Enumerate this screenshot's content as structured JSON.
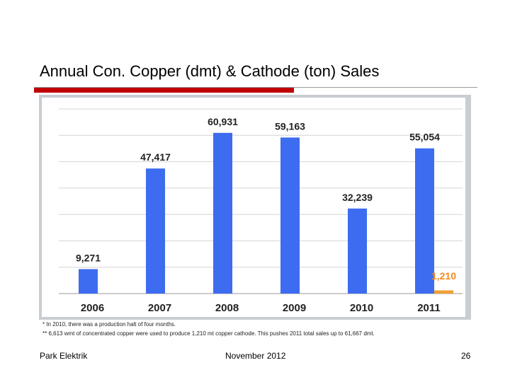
{
  "slide": {
    "title": "Annual Con. Copper (dmt) & Cathode (ton) Sales",
    "notes": [
      "* In 2010, there was a production halt of four months.",
      "** 6,613 wmt of concentrated copper were used to produce 1,210 mt copper cathode. This pushes 2011 total sales up to 61,667 dmt."
    ],
    "footer": {
      "company": "Park Elektrik",
      "date": "November 2012",
      "page_number": "26"
    }
  },
  "colors": {
    "concentrate": "#3d6cf0",
    "cathode": "#f0a030",
    "cathode_label": "#f08a1a",
    "title_rule": "#c00000"
  },
  "chart_data": {
    "type": "bar",
    "title": "",
    "xlabel": "",
    "ylabel": "",
    "categories": [
      "2006",
      "2007",
      "2008",
      "2009",
      "2010",
      "2011"
    ],
    "ylim": [
      0,
      70000
    ],
    "grid": true,
    "legend": "none",
    "series": [
      {
        "values": [
          9271,
          47417,
          60931,
          59163,
          32239,
          55054
        ],
        "labels": [
          "9,271",
          "47,417",
          "60,931",
          "59,163",
          "32,239",
          "55,054"
        ],
        "color": "#3d6cf0"
      },
      {
        "values": [
          null,
          null,
          null,
          null,
          null,
          1210
        ],
        "labels": [
          "",
          "",
          "",
          "",
          "",
          "1,210"
        ],
        "color": "#f0a030"
      }
    ]
  }
}
